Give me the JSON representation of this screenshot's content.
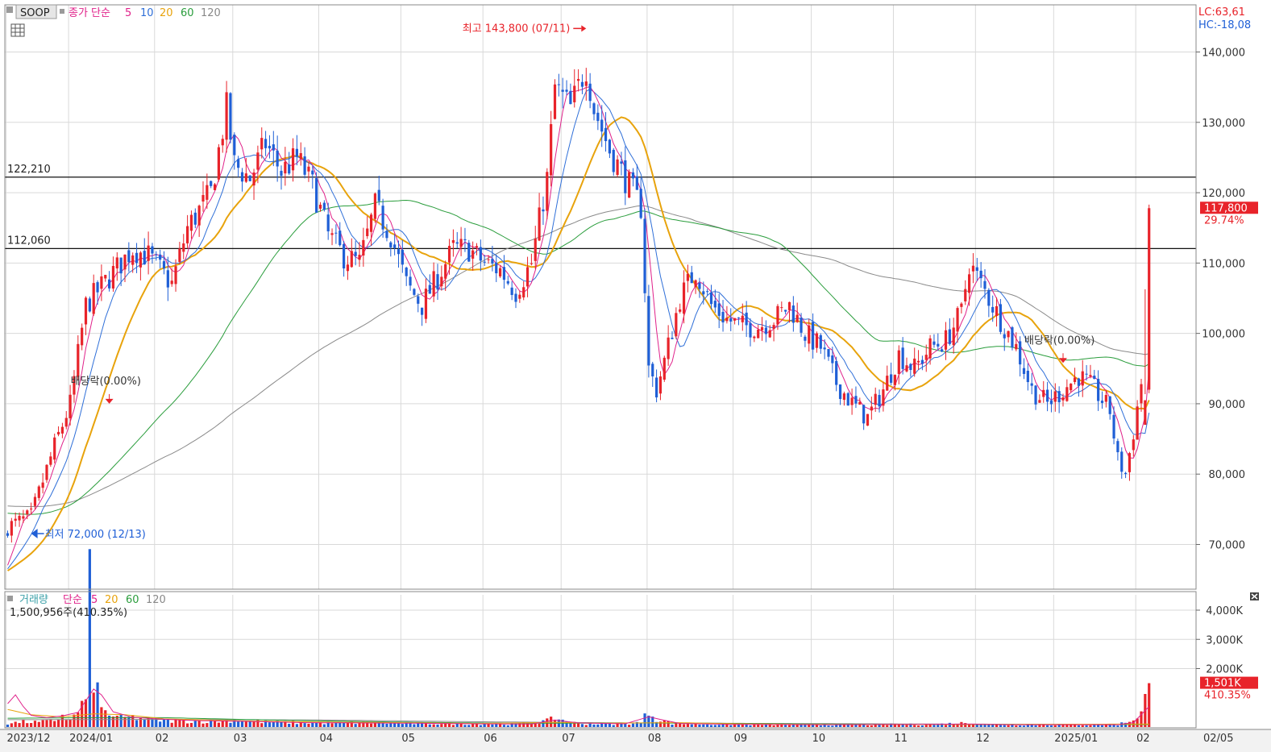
{
  "chart_data": [
    {
      "type": "candlestick",
      "legend": {
        "symbol": "SOOP",
        "items": [
          {
            "label": "종가 단순",
            "color": "#e0218a"
          },
          {
            "label": "5",
            "color": "#e0218a"
          },
          {
            "label": "10",
            "color": "#2f6fd8"
          },
          {
            "label": "20",
            "color": "#e8a30c"
          },
          {
            "label": "60",
            "color": "#2a9d3c"
          },
          {
            "label": "120",
            "color": "#888888"
          }
        ]
      },
      "indicators": {
        "lc": "LC:63,61",
        "hc": "HC:-18,08"
      },
      "y_ticks": [
        "140,000",
        "130,000",
        "120,000",
        "110,000",
        "100,000",
        "90,000",
        "80,000",
        "70,000"
      ],
      "y_tick_values": [
        140000,
        130000,
        120000,
        110000,
        100000,
        90000,
        80000,
        70000
      ],
      "ylim": [
        65000,
        148000
      ],
      "x_ticks": [
        "2023/12",
        "2024/01",
        "02",
        "03",
        "04",
        "05",
        "06",
        "07",
        "08",
        "09",
        "10",
        "11",
        "12",
        "2025/01",
        "02",
        "02/05"
      ],
      "x_tick_index": [
        0,
        16,
        38,
        58,
        80,
        101,
        122,
        142,
        164,
        186,
        206,
        227,
        248,
        268,
        289,
        313
      ],
      "n_bars": 294,
      "close_path": [
        [
          0,
          72500
        ],
        [
          6,
          74000
        ],
        [
          12,
          84000
        ],
        [
          16,
          90000
        ],
        [
          20,
          104000
        ],
        [
          26,
          108000
        ],
        [
          32,
          112000
        ],
        [
          36,
          111000
        ],
        [
          42,
          107000
        ],
        [
          46,
          115000
        ],
        [
          52,
          120000
        ],
        [
          56,
          132000
        ],
        [
          58,
          124000
        ],
        [
          62,
          122000
        ],
        [
          66,
          127000
        ],
        [
          70,
          123000
        ],
        [
          74,
          125000
        ],
        [
          78,
          121000
        ],
        [
          82,
          114000
        ],
        [
          86,
          111000
        ],
        [
          90,
          110000
        ],
        [
          94,
          118000
        ],
        [
          98,
          114000
        ],
        [
          102,
          107000
        ],
        [
          106,
          104000
        ],
        [
          110,
          108000
        ],
        [
          114,
          112000
        ],
        [
          118,
          112000
        ],
        [
          122,
          110000
        ],
        [
          126,
          109000
        ],
        [
          130,
          106000
        ],
        [
          134,
          110000
        ],
        [
          138,
          122000
        ],
        [
          140,
          135000
        ],
        [
          144,
          132000
        ],
        [
          148,
          138000
        ],
        [
          150,
          132000
        ],
        [
          154,
          126000
        ],
        [
          158,
          122000
        ],
        [
          162,
          118000
        ],
        [
          164,
          95000
        ],
        [
          166,
          92000
        ],
        [
          168,
          96000
        ],
        [
          172,
          105000
        ],
        [
          176,
          109000
        ],
        [
          180,
          104000
        ],
        [
          184,
          102000
        ],
        [
          188,
          101000
        ],
        [
          192,
          101000
        ],
        [
          196,
          102000
        ],
        [
          200,
          104000
        ],
        [
          204,
          100000
        ],
        [
          208,
          98000
        ],
        [
          212,
          93000
        ],
        [
          216,
          90000
        ],
        [
          220,
          88000
        ],
        [
          224,
          92000
        ],
        [
          228,
          97000
        ],
        [
          232,
          95000
        ],
        [
          236,
          98000
        ],
        [
          240,
          99000
        ],
        [
          244,
          103000
        ],
        [
          246,
          110000
        ],
        [
          250,
          106000
        ],
        [
          254,
          102000
        ],
        [
          258,
          98000
        ],
        [
          262,
          92000
        ],
        [
          266,
          90000
        ],
        [
          270,
          92000
        ],
        [
          274,
          94000
        ],
        [
          278,
          92000
        ],
        [
          282,
          89000
        ],
        [
          284,
          82000
        ],
        [
          286,
          80000
        ],
        [
          288,
          86000
        ],
        [
          290,
          93000
        ],
        [
          292,
          117800
        ]
      ],
      "vol_path": [
        [
          0,
          120
        ],
        [
          4,
          180
        ],
        [
          8,
          160
        ],
        [
          12,
          220
        ],
        [
          14,
          420
        ],
        [
          16,
          210
        ],
        [
          20,
          900
        ],
        [
          21,
          4400
        ],
        [
          22,
          1800
        ],
        [
          24,
          600
        ],
        [
          28,
          310
        ],
        [
          32,
          330
        ],
        [
          36,
          260
        ],
        [
          40,
          230
        ],
        [
          46,
          200
        ],
        [
          52,
          190
        ],
        [
          58,
          240
        ],
        [
          66,
          170
        ],
        [
          74,
          150
        ],
        [
          82,
          140
        ],
        [
          90,
          150
        ],
        [
          100,
          130
        ],
        [
          110,
          120
        ],
        [
          120,
          110
        ],
        [
          130,
          95
        ],
        [
          138,
          210
        ],
        [
          140,
          300
        ],
        [
          146,
          110
        ],
        [
          156,
          110
        ],
        [
          162,
          150
        ],
        [
          164,
          550
        ],
        [
          166,
          280
        ],
        [
          170,
          120
        ],
        [
          180,
          95
        ],
        [
          190,
          85
        ],
        [
          200,
          80
        ],
        [
          210,
          78
        ],
        [
          220,
          76
        ],
        [
          226,
          90
        ],
        [
          236,
          82
        ],
        [
          246,
          150
        ],
        [
          250,
          90
        ],
        [
          256,
          78
        ],
        [
          266,
          82
        ],
        [
          276,
          80
        ],
        [
          284,
          80
        ],
        [
          288,
          260
        ],
        [
          290,
          500
        ],
        [
          292,
          1501
        ]
      ],
      "ma5_vol_path": [
        [
          0,
          800
        ],
        [
          2,
          1100
        ],
        [
          4,
          700
        ],
        [
          6,
          400
        ],
        [
          10,
          320
        ],
        [
          14,
          380
        ],
        [
          18,
          500
        ],
        [
          22,
          1300
        ],
        [
          24,
          1100
        ],
        [
          27,
          520
        ],
        [
          32,
          330
        ],
        [
          38,
          280
        ],
        [
          48,
          220
        ],
        [
          58,
          200
        ],
        [
          66,
          180
        ],
        [
          76,
          150
        ],
        [
          90,
          140
        ],
        [
          104,
          130
        ],
        [
          120,
          110
        ],
        [
          134,
          100
        ],
        [
          140,
          240
        ],
        [
          146,
          140
        ],
        [
          158,
          110
        ],
        [
          164,
          350
        ],
        [
          167,
          260
        ],
        [
          172,
          120
        ],
        [
          186,
          90
        ],
        [
          210,
          80
        ],
        [
          246,
          100
        ],
        [
          256,
          80
        ],
        [
          284,
          80
        ],
        [
          288,
          150
        ],
        [
          292,
          700
        ]
      ],
      "ma20_vol_path": [
        [
          0,
          600
        ],
        [
          6,
          420
        ],
        [
          14,
          350
        ],
        [
          22,
          450
        ],
        [
          30,
          420
        ],
        [
          40,
          280
        ],
        [
          60,
          210
        ],
        [
          80,
          170
        ],
        [
          100,
          150
        ],
        [
          120,
          120
        ],
        [
          140,
          160
        ],
        [
          150,
          130
        ],
        [
          162,
          140
        ],
        [
          172,
          150
        ],
        [
          186,
          110
        ],
        [
          210,
          85
        ],
        [
          250,
          90
        ],
        [
          290,
          100
        ]
      ],
      "ma60_vol_path": [
        [
          0,
          300
        ],
        [
          20,
          320
        ],
        [
          40,
          320
        ],
        [
          60,
          260
        ],
        [
          80,
          210
        ],
        [
          100,
          170
        ],
        [
          120,
          140
        ],
        [
          140,
          130
        ],
        [
          164,
          140
        ],
        [
          190,
          120
        ],
        [
          210,
          100
        ],
        [
          250,
          90
        ],
        [
          292,
          90
        ]
      ],
      "ma120_vol_path": [
        [
          0,
          250
        ],
        [
          40,
          260
        ],
        [
          80,
          240
        ],
        [
          120,
          180
        ],
        [
          160,
          140
        ],
        [
          200,
          120
        ],
        [
          240,
          100
        ],
        [
          292,
          90
        ]
      ],
      "price_lines": [
        {
          "label": "122,210",
          "value": 122210
        },
        {
          "label": "112,060",
          "value": 112060
        }
      ],
      "annotations": {
        "high": {
          "text": "최고 143,800 (07/11)",
          "value": 143800
        },
        "low": {
          "text": "최저 72,000 (12/13)",
          "value": 72000
        },
        "dividends": [
          {
            "text": "배당락(0.00%)",
            "bar": 26,
            "value": 90000
          },
          {
            "text": "배당락(0.00%)",
            "bar": 270,
            "value": 95800
          }
        ]
      },
      "current": {
        "price": "117,800",
        "change": "29.74%",
        "value": 117800
      },
      "volume_panel": {
        "legend": [
          {
            "label": "거래량",
            "color": "#3aa0a8"
          },
          {
            "label": "단순",
            "color": "#e0218a"
          },
          {
            "label": "5",
            "color": "#e0218a"
          },
          {
            "label": "20",
            "color": "#e8a30c"
          },
          {
            "label": "60",
            "color": "#2a9d3c"
          },
          {
            "label": "120",
            "color": "#888888"
          }
        ],
        "value_text": "1,500,956주(410.35%)",
        "y_ticks": [
          "4,000K",
          "3,000K",
          "2,000K"
        ],
        "y_tick_values": [
          4000,
          3000,
          2000
        ],
        "ylim": [
          0,
          4500
        ],
        "current": {
          "value": "1,501K",
          "change": "410.35%",
          "v": 1501
        }
      },
      "colors": {
        "up": "#e8232a",
        "down": "#1f5fd6",
        "ma5": "#e0218a",
        "ma10": "#2f6fd8",
        "ma20": "#e8a30c",
        "ma60": "#2a9d3c",
        "ma120": "#8a8a8a"
      }
    }
  ]
}
